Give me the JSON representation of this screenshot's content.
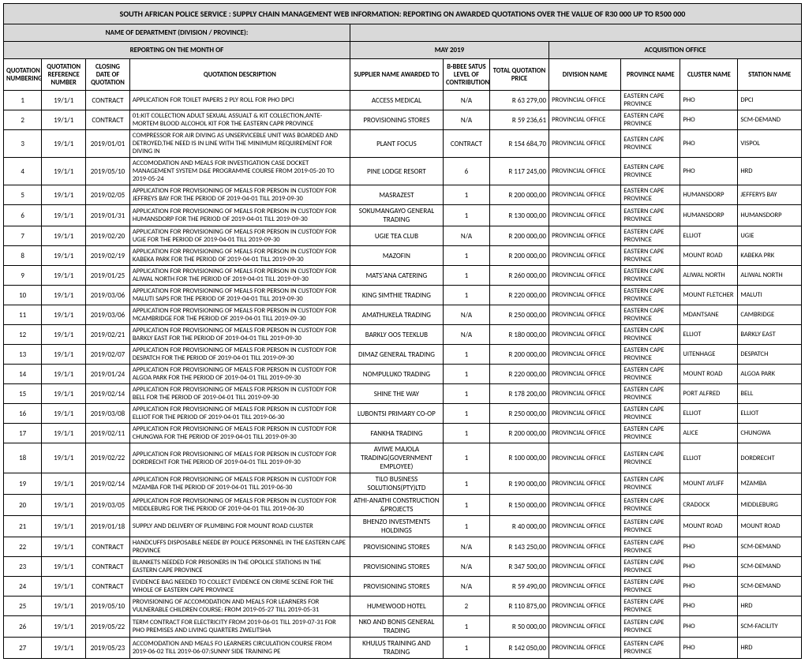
{
  "header": {
    "title": "SOUTH AFRICAN POLICE SERVICE : SUPPLY CHAIN MANAGEMENT WEB INFORMATION: REPORTING ON AWARDED QUOTATIONS OVER THE VALUE OF R30 000 UP TO R500 000",
    "dept_label": "NAME OF DEPARTMENT (DIVISION / PROVINCE):",
    "month_label": "REPORTING ON THE MONTH OF",
    "month_value": "MAY  2019",
    "acq_office_label": "ACQUISITION OFFICE"
  },
  "columns": {
    "c0": "QUOTATION NUMBERING",
    "c1": "QUOTATION REFERENCE NUMBER",
    "c2": "CLOSING DATE OF QUOTATION",
    "c3": "QUOTATION DESCRIPTION",
    "c4": "SUPPLIER NAME AWARDED TO",
    "c5": "B-BBEE SATUS LEVEL OF CONTRIBUTION",
    "c6": "TOTAL QUOTATION PRICE",
    "c7": "DIVISION NAME",
    "c8": "PROVINCE NAME",
    "c9": "CLUSTER NAME",
    "c10": "STATION NAME"
  },
  "colwidths": [
    "45",
    "52",
    "52",
    "260",
    "110",
    "55",
    "70",
    "85",
    "70",
    "68",
    "75"
  ],
  "rows": [
    {
      "n": "1",
      "ref": "19/1/1",
      "close": "CONTRACT",
      "desc": "APPLICATION FOR TOILET PAPERS 2 PLY ROLL FOR PHO DPCI",
      "supp": "ACCESS MEDICAL",
      "bbee": "N/A",
      "price": "R        63 279,00",
      "div": "PROVINCIAL OFFICE",
      "prov": "EASTERN CAPE PROVINCE",
      "clus": "PHO",
      "stat": "DPCI"
    },
    {
      "n": "2",
      "ref": "19/1/1",
      "close": "CONTRACT",
      "desc": "01:KIT COLLECTION ADULT SEXUAL ASSUALT & KIT COLLECTION,ANTE-MORTEM BLOOD ALCOHOL KIT FOR THE EASTERN CAPR PROVINCE",
      "supp": "PROVISIONING STORES",
      "bbee": "N/A",
      "price": "R        59 236,61",
      "div": "PROVINCIAL OFFICE",
      "prov": "EASTERN CAPE PROVINCE",
      "clus": "PHO",
      "stat": "SCM-DEMAND"
    },
    {
      "n": "3",
      "ref": "19/1/1",
      "close": "2019/01/01",
      "desc": "COMPRESSOR FOR AIR DIVING AS UNSERVICEBLE UNIT WAS BOARDED AND DETROYED,THE NEED IS IN LINE WITH THE MINIMUM REQUIREMENT FOR DIVING IN",
      "supp": "PLANT FOCUS",
      "bbee": "CONTRACT",
      "price": "R      154 684,70",
      "div": "PROVINCIAL OFFICE",
      "prov": "EASTERN CAPE PROVINCE",
      "clus": "PHO",
      "stat": "VISPOL"
    },
    {
      "n": "4",
      "ref": "19/1/1",
      "close": "2019/05/10",
      "desc": "ACCOMODATION AND MEALS FOR INVESTIGATION CASE DOCKET MANAGEMENT SYSTEM D&E PROGRAMME COURSE FROM 2019-05-20 TO 2019-05-24",
      "supp": "PINE LODGE RESORT",
      "bbee": "6",
      "price": "R      117 245,00",
      "div": "PROVINCIAL OFFICE",
      "prov": "EASTERN CAPE PROVINCE",
      "clus": "PHO",
      "stat": "HRD"
    },
    {
      "n": "5",
      "ref": "19/1/1",
      "close": "2019/02/05",
      "desc": "APPLICATION FOR PROVISIONING OF MEALS FOR PERSON IN CUSTODY FOR JEFFREYS BAY FOR THE PERIOD OF 2019-04-01 TILL 2019-09-30",
      "supp": "MASRAZEST",
      "bbee": "1",
      "price": "R      200 000,00",
      "div": "PROVINCIAL OFFICE",
      "prov": "EASTERN CAPE PROVINCE",
      "clus": "HUMANSDORP",
      "stat": "JEFFERYS BAY"
    },
    {
      "n": "6",
      "ref": "19/1/1",
      "close": "2019/01/31",
      "desc": "APPLICATION FOR PROVISIONING OF MEALS FOR PERSON IN CUSTODY FOR HUMANSDORP FOR THE PERIOD OF 2019-04-01 TILL 2019-09-30",
      "supp": "SOKUMANGAYO GENERAL TRADING",
      "bbee": "1",
      "price": "R      130 000,00",
      "div": "PROVINCIAL OFFICE",
      "prov": "EASTERN CAPE PROVINCE",
      "clus": "HUMANSDORP",
      "stat": "HUMANSDORP"
    },
    {
      "n": "7",
      "ref": "19/1/1",
      "close": "2019/02/20",
      "desc": "APPLICATION FOR PROVISIONING OF MEALS FOR PERSON IN CUSTODY FOR UGIE FOR THE PERIOD OF 2019-04-01 TILL 2019-09-30",
      "supp": "UGIE TEA CLUB",
      "bbee": "N/A",
      "price": "R      200 000,00",
      "div": "PROVINCIAL OFFICE",
      "prov": "EASTERN CAPE PROVINCE",
      "clus": "ELLIOT",
      "stat": "UGIE"
    },
    {
      "n": "8",
      "ref": "19/1/1",
      "close": "2019/02/19",
      "desc": "APPLICATION FOR PROVISIONING OF MEALS FOR PERSON IN CUSTODY FOR KABEKA PARK FOR THE PERIOD OF 2019-04-01 TILL 2019-09-30",
      "supp": "MAZOFIN",
      "bbee": "1",
      "price": "R      200 000,00",
      "div": "PROVINCIAL OFFICE",
      "prov": "EASTERN CAPE PROVINCE",
      "clus": "MOUNT ROAD",
      "stat": "KABEKA PRK"
    },
    {
      "n": "9",
      "ref": "19/1/1",
      "close": "2019/01/25",
      "desc": "APPLICATION FOR PROVISIONING OF MEALS FOR PERSON IN CUSTODY FOR ALIWAL NORTH FOR THE PERIOD OF 2019-04-01 TILL 2019-09-30",
      "supp": "MATS'ANA CATERING",
      "bbee": "1",
      "price": "R      260 000,00",
      "div": "PROVINCIAL OFFICE",
      "prov": "EASTERN CAPE PROVINCE",
      "clus": "ALIWAL NORTH",
      "stat": "ALIWAL NORTH"
    },
    {
      "n": "10",
      "ref": "19/1/1",
      "close": "2019/03/06",
      "desc": "APPLICATION FOR PROVISIONING OF MEALS FOR PERSON IN CUSTODY FOR MALUTI SAPS FOR THE PERIOD OF 2019-04-01 TILL 2019-09-30",
      "supp": "KING SIMTHIE TRADING",
      "bbee": "1",
      "price": "R      220 000,00",
      "div": "PROVINCIAL OFFICE",
      "prov": "EASTERN CAPE PROVINCE",
      "clus": "MOUNT FLETCHER",
      "stat": "MALUTI"
    },
    {
      "n": "11",
      "ref": "19/1/1",
      "close": "2019/03/06",
      "desc": "APPLICATION FOR PROVISIONING OF MEALS FOR PERSON IN CUSTODY FOR MCAMBRIDGE FOR THE PERIOD OF 2019-04-01 TILL 2019-09-30",
      "supp": "AMATHUKELA TRADING",
      "bbee": "N/A",
      "price": "R      250 000,00",
      "div": "PROVINCIAL OFFICE",
      "prov": "EASTERN CAPE PROVINCE",
      "clus": "MDANTSANE",
      "stat": "CAMBRIDGE"
    },
    {
      "n": "12",
      "ref": "19/1/1",
      "close": "2019/02/21",
      "desc": "APPLICATION FOR PROVISIONING OF MEALS FOR PERSON IN CUSTODY FOR BARKLY EAST FOR THE PERIOD OF 2019-04-01 TILL 2019-09-30",
      "supp": "BARKLY OOS TEEKLUB",
      "bbee": "N/A",
      "price": "R      180 000,00",
      "div": "PROVINCIAL OFFICE",
      "prov": "EASTERN CAPE PROVINCE",
      "clus": "ELLIOT",
      "stat": "BARKLY EAST"
    },
    {
      "n": "13",
      "ref": "19/1/1",
      "close": "2019/02/07",
      "desc": "APPLICATION FOR PROVISIONING OF MEALS FOR PERSON IN CUSTODY FOR DESPATCH FOR THE PERIOD OF 2019-04-01 TILL 2019-09-30",
      "supp": "DIMAZ GENERAL TRADING",
      "bbee": "1",
      "price": "R      200 000,00",
      "div": "PROVINCIAL OFFICE",
      "prov": "EASTERN CAPE PROVINCE",
      "clus": "UITENHAGE",
      "stat": "DESPATCH"
    },
    {
      "n": "14",
      "ref": "19/1/1",
      "close": "2019/01/24",
      "desc": "APPLICATION FOR PROVISIONING OF MEALS FOR PERSON IN CUSTODY FOR ALGOA PARK FOR THE PERIOD OF 2019-04-01 TILL 2019-09-30",
      "supp": "NOMPULUKO TRADING",
      "bbee": "1",
      "price": "R      220 000,00",
      "div": "PROVINCIAL OFFICE",
      "prov": "EASTERN CAPE PROVINCE",
      "clus": "MOUNT ROAD",
      "stat": "ALGOA PARK"
    },
    {
      "n": "15",
      "ref": "19/1/1",
      "close": "2019/02/14",
      "desc": "APPLICATION FOR PROVISIONING OF MEALS FOR PERSON IN CUSTODY FOR BELL FOR THE PERIOD OF 2019-04-01 TILL 2019-09-30",
      "supp": "SHINE THE WAY",
      "bbee": "1",
      "price": "R      178 200,00",
      "div": "PROVINCIAL OFFICE",
      "prov": "EASTERN CAPE PROVINCE",
      "clus": "PORT ALFRED",
      "stat": "BELL"
    },
    {
      "n": "16",
      "ref": "19/1/1",
      "close": "2019/03/08",
      "desc": "APPLICATION FOR PROVISIONING OF MEALS FOR PERSON IN CUSTODY FOR ELLIOT FOR THE PERIOD OF 2019-04-01 TILL 2019-06-30",
      "supp": "LUBONTSI PRIMARY CO-OP",
      "bbee": "1",
      "price": "R      250 000,00",
      "div": "PROVINCIAL OFFICE",
      "prov": "EASTERN CAPE PROVINCE",
      "clus": "ELLIOT",
      "stat": "ELLIOT"
    },
    {
      "n": "17",
      "ref": "19/1/1",
      "close": "2019/02/11",
      "desc": "APPLICATION FOR PROVISIONING OF MEALS FOR PERSON IN CUSTODY FOR CHUNGWA FOR THE PERIOD OF 2019-04-01 TILL 2019-09-30",
      "supp": "FANKHA TRADING",
      "bbee": "1",
      "price": "R      200 000,00",
      "div": "PROVINCIAL OFFICE",
      "prov": "EASTERN CAPE PROVINCE",
      "clus": "ALICE",
      "stat": "CHUNGWA"
    },
    {
      "n": "18",
      "ref": "19/1/1",
      "close": "2019/02/22",
      "desc": "APPLICATION FOR PROVISIONING OF MEALS FOR PERSON IN CUSTODY FOR DORDRECHT FOR THE PERIOD OF 2019-04-01 TILL 2019-09-30",
      "supp": "AVIWE MAJOLA TRADING(GOVERNMENT EMPLOYEE)",
      "bbee": "1",
      "price": "R      100 000,00",
      "div": "PROVINCIAL OFFICE",
      "prov": "EASTERN CAPE PROVINCE",
      "clus": "ELLIOT",
      "stat": "DORDRECHT"
    },
    {
      "n": "19",
      "ref": "19/1/1",
      "close": "2019/02/14",
      "desc": "APPLICATION FOR PROVISIONING OF MEALS FOR PERSON IN CUSTODY FOR MZAMBA FOR THE PERIOD OF 2019-04-01 TILL 2019-06-30",
      "supp": "TILO BUSINESS SOLUTIONS(PTY)LTD",
      "bbee": "1",
      "price": "R      190 000,00",
      "div": "PROVINCIAL OFFICE",
      "prov": "EASTERN CAPE PROVINCE",
      "clus": "MOUNT AYLIFF",
      "stat": "MZAMBA"
    },
    {
      "n": "20",
      "ref": "19/1/1",
      "close": "2019/03/05",
      "desc": "APPLICATION FOR PROVISIONING OF MEALS FOR PERSON IN CUSTODY FOR MIDDLEBURG FOR THE PERIOD OF 2019-04-01 TILL 2019-06-30",
      "supp": "ATHI-ANATHI CONSTRUCTION &PROJECTS",
      "bbee": "1",
      "price": "R      150 000,00",
      "div": "PROVINCIAL OFFICE",
      "prov": "EASTERN CAPE PROVINCE",
      "clus": "CRADOCK",
      "stat": "MIDDLEBURG"
    },
    {
      "n": "21",
      "ref": "19/1/1",
      "close": "2019/01/18",
      "desc": "SUPPLY AND DELIVERY OF PLUMBING FOR MOUNT ROAD CLUSTER",
      "supp": "BHENZO INVESTMENTS HOLDINGS",
      "bbee": "1",
      "price": "R        40 000,00",
      "div": "PROVINCIAL OFFICE",
      "prov": "EASTERN CAPE PROVINCE",
      "clus": "MOUNT ROAD",
      "stat": "MOUNT ROAD"
    },
    {
      "n": "22",
      "ref": "19/1/1",
      "close": "CONTRACT",
      "desc": "HANDCUFFS DISPOSABLE NEEDE BY POLICE PERSONNEL IN THE EASTERN CAPE PROVINCE",
      "supp": "PROVISIONING STORES",
      "bbee": "N/A",
      "price": "R      143 250,00",
      "div": "PROVINCIAL OFFICE",
      "prov": "EASTERN CAPE PROVINCE",
      "clus": "PHO",
      "stat": "SCM-DEMAND"
    },
    {
      "n": "23",
      "ref": "19/1/1",
      "close": "CONTRACT",
      "desc": "BLANKETS NEEDED FOR PRISONERS IN THE OPOLICE STATIONS IN THE EASTERN CAPE PROVINCE",
      "supp": "PROVISIONING STORES",
      "bbee": "N/A",
      "price": "R      347 500,00",
      "div": "PROVINCIAL OFFICE",
      "prov": "EASTERN CAPE PROVINCE",
      "clus": "PHO",
      "stat": "SCM-DEMAND"
    },
    {
      "n": "24",
      "ref": "19/1/1",
      "close": "CONTRACT",
      "desc": "EVIDENCE BAG NEEDED TO COLLECT EVIDENCE ON CRIME SCENE FOR THE WHOLE OF EASTERN CAPE PROVINCE",
      "supp": "PROVISIONING STORES",
      "bbee": "N/A",
      "price": "R        59 490,00",
      "div": "PROVINCIAL OFFICE",
      "prov": "EASTERN CAPE PROVINCE",
      "clus": "PHO",
      "stat": "SCM-DEMAND"
    },
    {
      "n": "25",
      "ref": "19/1/1",
      "close": "2019/05/10",
      "desc": "PROVISIONING OF ACCOMODATION AND MEALS FOR LEARNERS FOR VULNERABLE CHILDREN COURSE: FROM 2019-05-27 TILL 2019-05-31",
      "supp": "HUMEWOOD HOTEL",
      "bbee": "2",
      "price": "R      110 875,00",
      "div": "PROVINCIAL OFFICE",
      "prov": "EASTERN CAPE PROVINCE",
      "clus": "PHO",
      "stat": "HRD"
    },
    {
      "n": "26",
      "ref": "19/1/1",
      "close": "2019/05/22",
      "desc": "TERM CONTRACT FOR ELECTRICITY FROM 2019-06-01 TILL 2019-07-31 FOR PHO PREMISES AND LIVING QUARTERS ZWELITSHA",
      "supp": "NKO AND BONIS GENERAL TRADING",
      "bbee": "1",
      "price": "R        50 000,00",
      "div": "PROVINCIAL OFFICE",
      "prov": "EASTERN CAPE PROVINCE",
      "clus": "PHO",
      "stat": "SCM-FACILITY"
    },
    {
      "n": "27",
      "ref": "19/1/1",
      "close": "2019/05/23",
      "desc": "ACCOMODATION AND MEALS FO LEARNERS CIRCULATION COURSE FROM 2019-06-02 TILL 2019-06-07:SUNNY SIDE TRAINING PE",
      "supp": "KHULUS TRAINING AND TRADING",
      "bbee": "1",
      "price": "R      142 050,00",
      "div": "PROVINCIAL OFFICE",
      "prov": "EASTERN CAPE PROVINCE",
      "clus": "PHO",
      "stat": "HRD"
    }
  ]
}
